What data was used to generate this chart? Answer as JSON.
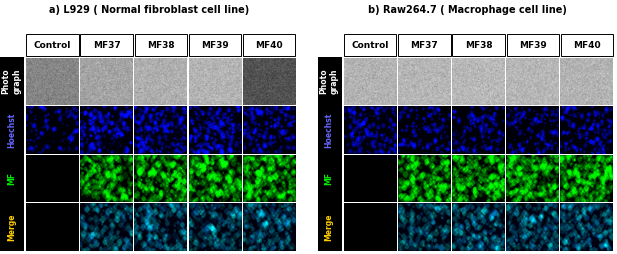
{
  "title_a": "a) L929 ( Normal fibroblast cell line)",
  "title_b": "b) Raw264.7 ( Macrophage cell line)",
  "col_labels": [
    "Control",
    "MF37",
    "MF38",
    "MF39",
    "MF40"
  ],
  "row_labels": [
    "Photo\ngraph",
    "Hoechst",
    "MF",
    "Merge"
  ],
  "row_label_colors": [
    "#ffffff",
    "#6666ff",
    "#00ee00",
    "#ffcc00"
  ],
  "photo_grays_a": [
    0.52,
    0.64,
    0.68,
    0.7,
    0.32
  ],
  "photo_grays_b": [
    0.7,
    0.71,
    0.72,
    0.71,
    0.7
  ],
  "hoechst_blue_a": [
    0.35,
    0.6,
    0.7,
    0.65,
    0.55
  ],
  "hoechst_blue_b": [
    0.5,
    0.38,
    0.42,
    0.45,
    0.52
  ],
  "mf_green_a": [
    0.0,
    0.6,
    0.65,
    0.7,
    0.72
  ],
  "mf_green_b": [
    0.0,
    0.68,
    0.72,
    0.7,
    0.74
  ],
  "merge_cyan_a": [
    0.0,
    0.55,
    0.62,
    0.6,
    0.64
  ],
  "merge_cyan_b": [
    0.0,
    0.58,
    0.68,
    0.62,
    0.7
  ],
  "noise_seed": 42,
  "fig_w": 6.17,
  "fig_h": 2.54,
  "dpi": 100
}
